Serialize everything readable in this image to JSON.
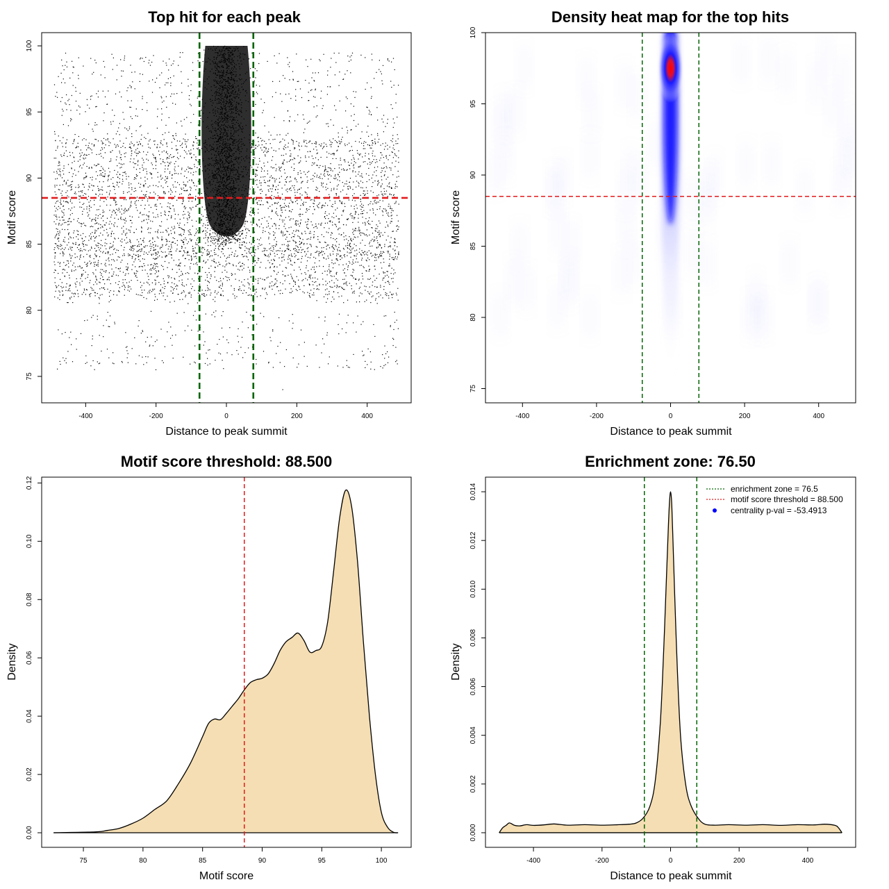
{
  "chart_data": [
    {
      "type": "scatter",
      "title": "Top hit for each peak",
      "xlabel": "Distance to peak summit",
      "ylabel": "Motif score",
      "xlim": [
        -525,
        525
      ],
      "ylim": [
        73,
        101
      ],
      "xticks": [
        "-400",
        "-200",
        "0",
        "200",
        "400"
      ],
      "yticks": [
        "75",
        "80",
        "85",
        "90",
        "95",
        "100"
      ],
      "vlines": [
        -76.5,
        76.5
      ],
      "hline": 88.5,
      "colors": {
        "points": "#000000",
        "zone_lines": "#006400",
        "threshold_line": "#e31a1c"
      },
      "background_points": {
        "x_range": [
          -490,
          490
        ],
        "dense_y_range": [
          80,
          99.5
        ],
        "sparse_y_range": [
          75.5,
          80
        ],
        "sparse_extra": [
          [
            -385,
            75.8
          ],
          [
            -360,
            76
          ],
          [
            450,
            77.3
          ],
          [
            160,
            74
          ],
          [
            475,
            77.8
          ]
        ]
      },
      "central_cluster": {
        "x_range": [
          -70,
          70
        ],
        "y_range": [
          85,
          100
        ]
      },
      "grid": false
    },
    {
      "type": "heatmap",
      "title": "Density heat map for the top hits",
      "xlabel": "Distance to peak summit",
      "ylabel": "Motif score",
      "xlim": [
        -500,
        500
      ],
      "ylim": [
        74,
        100
      ],
      "xticks": [
        "-400",
        "-200",
        "0",
        "200",
        "400"
      ],
      "yticks": [
        "75",
        "80",
        "85",
        "90",
        "95",
        "100"
      ],
      "vlines": [
        -76.5,
        76.5
      ],
      "hline": 88.5,
      "colors": {
        "low": "#ffffff",
        "mid": "#0000ff",
        "high": "#ff0000",
        "zone_lines": "#006400",
        "threshold_line": "#e31a1c"
      },
      "hotspot": {
        "x": 0,
        "y": 97.5
      },
      "grid": false
    },
    {
      "type": "area",
      "title": "Motif score threshold: 88.500",
      "xlabel": "Motif score",
      "ylabel": "Density",
      "xlim": [
        71.5,
        102.5
      ],
      "ylim": [
        -0.005,
        0.122
      ],
      "xticks": [
        "75",
        "80",
        "85",
        "90",
        "95",
        "100"
      ],
      "yticks": [
        "0.00",
        "0.02",
        "0.04",
        "0.06",
        "0.08",
        "0.10",
        "0.12"
      ],
      "vline": 88.5,
      "colors": {
        "fill": "#f5deb3",
        "line": "#000000",
        "threshold_line": "#e31a1c"
      },
      "x": [
        72.5,
        76,
        77,
        78,
        79,
        80,
        81,
        82,
        83,
        84,
        85,
        85.5,
        86,
        86.5,
        87,
        87.5,
        88,
        88.5,
        89,
        89.5,
        90,
        90.5,
        91,
        91.5,
        92,
        92.5,
        93,
        93.5,
        94,
        94.5,
        95,
        95.5,
        96,
        96.5,
        97,
        97.5,
        98,
        98.5,
        99,
        99.5,
        100,
        100.5,
        101,
        101.4
      ],
      "y": [
        0,
        0.0003,
        0.0008,
        0.0015,
        0.003,
        0.005,
        0.008,
        0.011,
        0.017,
        0.024,
        0.033,
        0.0375,
        0.039,
        0.0388,
        0.041,
        0.0435,
        0.046,
        0.049,
        0.0515,
        0.0525,
        0.053,
        0.0545,
        0.058,
        0.0625,
        0.0655,
        0.067,
        0.0685,
        0.066,
        0.062,
        0.0625,
        0.064,
        0.0725,
        0.09,
        0.108,
        0.1175,
        0.112,
        0.093,
        0.065,
        0.04,
        0.02,
        0.007,
        0.002,
        0.0002,
        0
      ],
      "grid": false
    },
    {
      "type": "area",
      "title": "Enrichment zone: 76.50",
      "xlabel": "Distance to peak summit",
      "ylabel": "Density",
      "xlim": [
        -540,
        540
      ],
      "ylim": [
        -0.0006,
        0.0146
      ],
      "xticks": [
        "-400",
        "-200",
        "0",
        "200",
        "400"
      ],
      "yticks": [
        "0.000",
        "0.002",
        "0.004",
        "0.006",
        "0.008",
        "0.010",
        "0.012",
        "0.014"
      ],
      "vlines": [
        -76.5,
        76.5
      ],
      "colors": {
        "fill": "#f5deb3",
        "line": "#000000",
        "zone_lines": "#006400",
        "centrality_point": "#0000ff"
      },
      "x": [
        -500,
        -490,
        -480,
        -470,
        -455,
        -440,
        -420,
        -400,
        -370,
        -340,
        -300,
        -250,
        -200,
        -150,
        -120,
        -100,
        -80,
        -60,
        -45,
        -30,
        -20,
        -12,
        -6,
        -3,
        0,
        3,
        6,
        12,
        20,
        30,
        45,
        60,
        80,
        100,
        130,
        170,
        220,
        270,
        320,
        370,
        420,
        450,
        480,
        490,
        500
      ],
      "y": [
        0,
        0.0002,
        0.0003,
        0.0004,
        0.0003,
        0.00028,
        0.00033,
        0.0003,
        0.00032,
        0.00036,
        0.00031,
        0.00033,
        0.00031,
        0.00033,
        0.00035,
        0.0004,
        0.0006,
        0.0011,
        0.0021,
        0.0045,
        0.0075,
        0.0105,
        0.0127,
        0.0136,
        0.014,
        0.0136,
        0.0124,
        0.0098,
        0.0066,
        0.0038,
        0.0019,
        0.0011,
        0.0006,
        0.00035,
        0.00031,
        0.00033,
        0.00031,
        0.00033,
        0.0003,
        0.00033,
        0.00032,
        0.00035,
        0.0003,
        0.0002,
        0
      ],
      "legend": {
        "position": "top-right",
        "entries": [
          "enrichment zone = 76.5",
          "motif score threshold = 88.500",
          "centrality p-val = -53.4913"
        ]
      },
      "grid": false
    }
  ]
}
